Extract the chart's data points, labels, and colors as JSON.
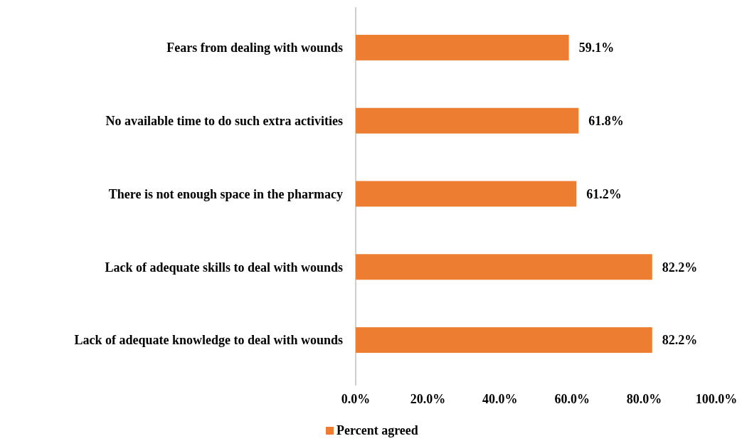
{
  "chart_data": {
    "type": "bar",
    "orientation": "horizontal",
    "categories": [
      "Fears from dealing with wounds",
      "No available time to do such extra activities",
      "There is not enough space in the pharmacy",
      "Lack of adequate skills to deal with wounds",
      "Lack of adequate knowledge to deal with wounds"
    ],
    "series": [
      {
        "name": "Percent agreed",
        "color": "#ed7d31",
        "values": [
          59.1,
          61.8,
          61.2,
          82.2,
          82.2
        ],
        "value_labels": [
          "59.1%",
          "61.8%",
          "61.2%",
          "82.2%",
          "82.2%"
        ]
      }
    ],
    "xlim": [
      0,
      100
    ],
    "xticks": [
      {
        "value": 0,
        "label": "0.0%"
      },
      {
        "value": 20,
        "label": "20.0%"
      },
      {
        "value": 40,
        "label": "40.0%"
      },
      {
        "value": 60,
        "label": "60.0%"
      },
      {
        "value": 80,
        "label": "80.0%"
      },
      {
        "value": 100,
        "label": "100.0%"
      }
    ],
    "grid": false,
    "legend": "bottom"
  }
}
